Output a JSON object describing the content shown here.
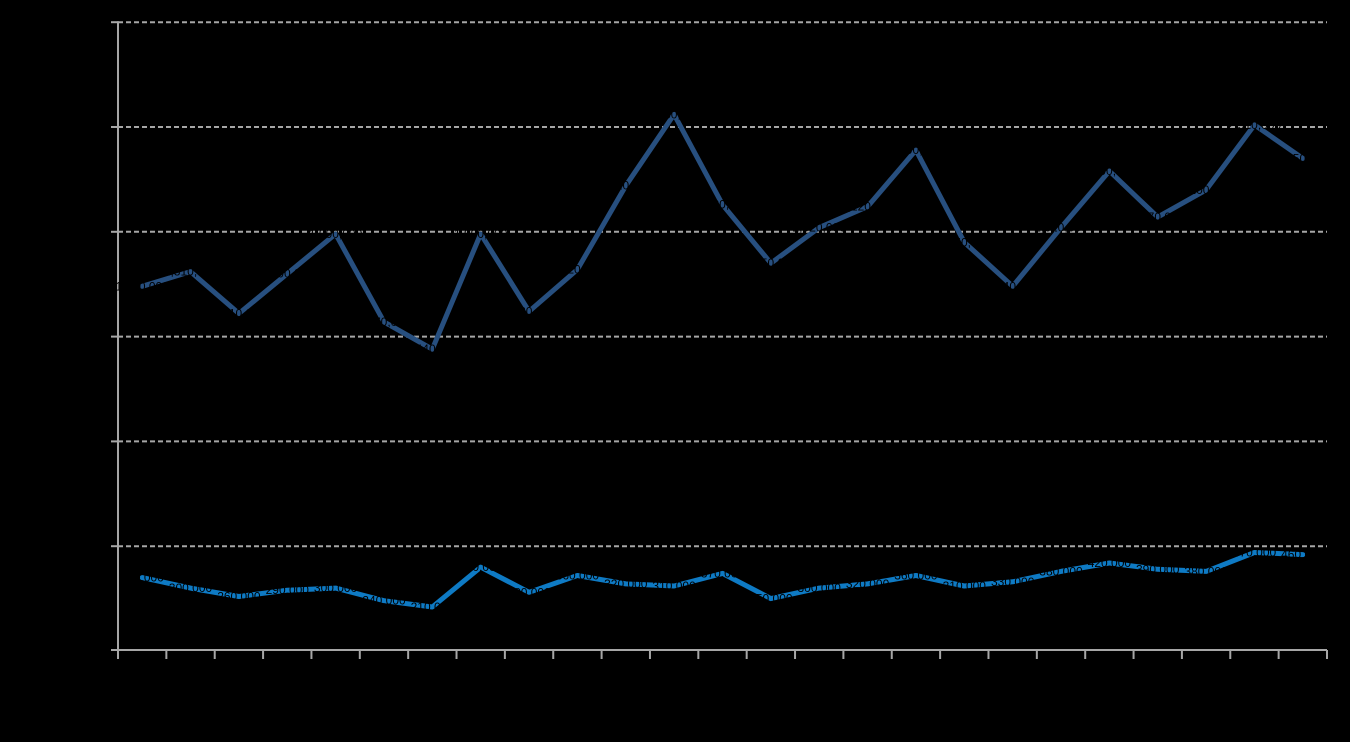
{
  "chart_data": {
    "type": "line",
    "title": "",
    "subtitle": "",
    "xlabel": "",
    "ylabel": "",
    "categories": [],
    "num_points": 25,
    "x_axis_labels_visible": false,
    "y_axis_labels_visible": false,
    "legend": "none",
    "grid": "horizontal-dashed",
    "ylim": [
      0,
      3000000
    ],
    "gridline_step": 500000,
    "background_color": "#000000",
    "axis_color": "#a6a6a6",
    "gridline_color": "#a6a6a6",
    "data_label_color": "#000000",
    "series": [
      {
        "name": "upper-dark-blue-series",
        "color": "#274f7f",
        "values": [
          1740000,
          1810000,
          1610000,
          1800000,
          1990000,
          1570000,
          1440000,
          1990000,
          1620000,
          1820000,
          2220000,
          2560000,
          2130000,
          1850000,
          2020000,
          2120000,
          2390000,
          1950000,
          1740000,
          2020000,
          2290000,
          2070000,
          2200000,
          2510000,
          2350000
        ]
      },
      {
        "name": "lower-bright-blue-series",
        "color": "#0e7ac4",
        "values": [
          350000,
          300000,
          260000,
          290000,
          300000,
          240000,
          210000,
          400000,
          280000,
          360000,
          320000,
          310000,
          370000,
          250000,
          300000,
          320000,
          360000,
          310000,
          330000,
          380000,
          420000,
          390000,
          380000,
          470000,
          460000
        ]
      }
    ],
    "data_labels_shown": true
  }
}
